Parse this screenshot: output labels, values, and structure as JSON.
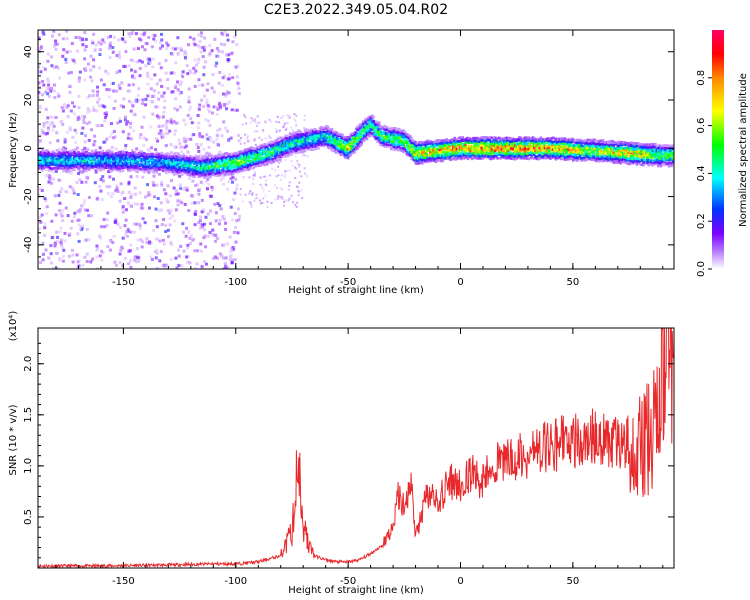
{
  "page": {
    "title": "C2E3.2022.349.05.04.R02"
  },
  "colors": {
    "snr_line": "#e8282b",
    "axis": "#000000",
    "colormap": [
      "#ffffff",
      "#7a00ff",
      "#0033ff",
      "#00ffff",
      "#00ff00",
      "#ffff00",
      "#ff8800",
      "#ff0000",
      "#ff0066"
    ]
  },
  "chart_data": [
    {
      "type": "heatmap",
      "name": "spectrogram",
      "xlabel": "Height of straight line (km)",
      "ylabel": "Frequency (Hz)",
      "xlim": [
        -188,
        95
      ],
      "ylim": [
        -50,
        49
      ],
      "x_ticks": [
        -150,
        -100,
        -50,
        0,
        50
      ],
      "y_ticks": [
        -40,
        -20,
        0,
        20,
        40
      ],
      "colorbar": {
        "label": "Normalized spectral amplitude",
        "range": [
          0,
          1
        ],
        "ticks": [
          0.0,
          0.2,
          0.4,
          0.6,
          0.8
        ]
      },
      "ridge": [
        {
          "x": -188,
          "y": -5,
          "amp": 0.45
        },
        {
          "x": -170,
          "y": -5,
          "amp": 0.42
        },
        {
          "x": -150,
          "y": -5,
          "amp": 0.4
        },
        {
          "x": -130,
          "y": -6,
          "amp": 0.4
        },
        {
          "x": -115,
          "y": -8,
          "amp": 0.5
        },
        {
          "x": -100,
          "y": -6,
          "amp": 0.65
        },
        {
          "x": -85,
          "y": -2,
          "amp": 0.55
        },
        {
          "x": -75,
          "y": 2,
          "amp": 0.5
        },
        {
          "x": -60,
          "y": 5,
          "amp": 0.45
        },
        {
          "x": -50,
          "y": 0,
          "amp": 0.8
        },
        {
          "x": -40,
          "y": 10,
          "amp": 0.55
        },
        {
          "x": -35,
          "y": 5,
          "amp": 0.55
        },
        {
          "x": -25,
          "y": 3,
          "amp": 0.6
        },
        {
          "x": -20,
          "y": -2,
          "amp": 0.8
        },
        {
          "x": -10,
          "y": -1,
          "amp": 0.85
        },
        {
          "x": 0,
          "y": 0,
          "amp": 0.9
        },
        {
          "x": 20,
          "y": 0,
          "amp": 0.92
        },
        {
          "x": 40,
          "y": 0,
          "amp": 0.88
        },
        {
          "x": 60,
          "y": -1,
          "amp": 0.7
        },
        {
          "x": 75,
          "y": -2,
          "amp": 0.85
        },
        {
          "x": 90,
          "y": -3,
          "amp": 0.6
        }
      ]
    },
    {
      "type": "line",
      "name": "snr",
      "xlabel": "Height of straight line (km)",
      "ylabel": "SNR (10 * v/v)",
      "y_multiplier": "(x10⁴)",
      "xlim": [
        -188,
        95
      ],
      "ylim": [
        0,
        2.35
      ],
      "x_ticks": [
        -150,
        -100,
        -50,
        0,
        50
      ],
      "y_ticks": [
        0.5,
        1.0,
        1.5,
        2.0
      ],
      "series": [
        {
          "x": [
            -188,
            -160,
            -130,
            -110,
            -100,
            -90,
            -80,
            -75,
            -72,
            -70,
            -68,
            -65,
            -60,
            -55,
            -50,
            -45,
            -40,
            -35,
            -30,
            -28,
            -25,
            -22,
            -20,
            -15,
            -10,
            -5,
            0,
            5,
            10,
            15,
            20,
            30,
            40,
            50,
            60,
            70,
            80,
            85,
            88,
            90,
            92,
            95
          ],
          "y": [
            0.02,
            0.02,
            0.03,
            0.04,
            0.04,
            0.06,
            0.12,
            0.35,
            1.05,
            0.45,
            0.25,
            0.12,
            0.08,
            0.06,
            0.06,
            0.08,
            0.14,
            0.22,
            0.4,
            0.75,
            0.6,
            0.85,
            0.3,
            0.7,
            0.65,
            0.85,
            0.8,
            0.95,
            0.85,
            1.0,
            1.05,
            1.1,
            1.2,
            1.25,
            1.3,
            1.25,
            1.2,
            1.3,
            1.6,
            1.9,
            2.15,
            1.7
          ]
        }
      ]
    }
  ]
}
